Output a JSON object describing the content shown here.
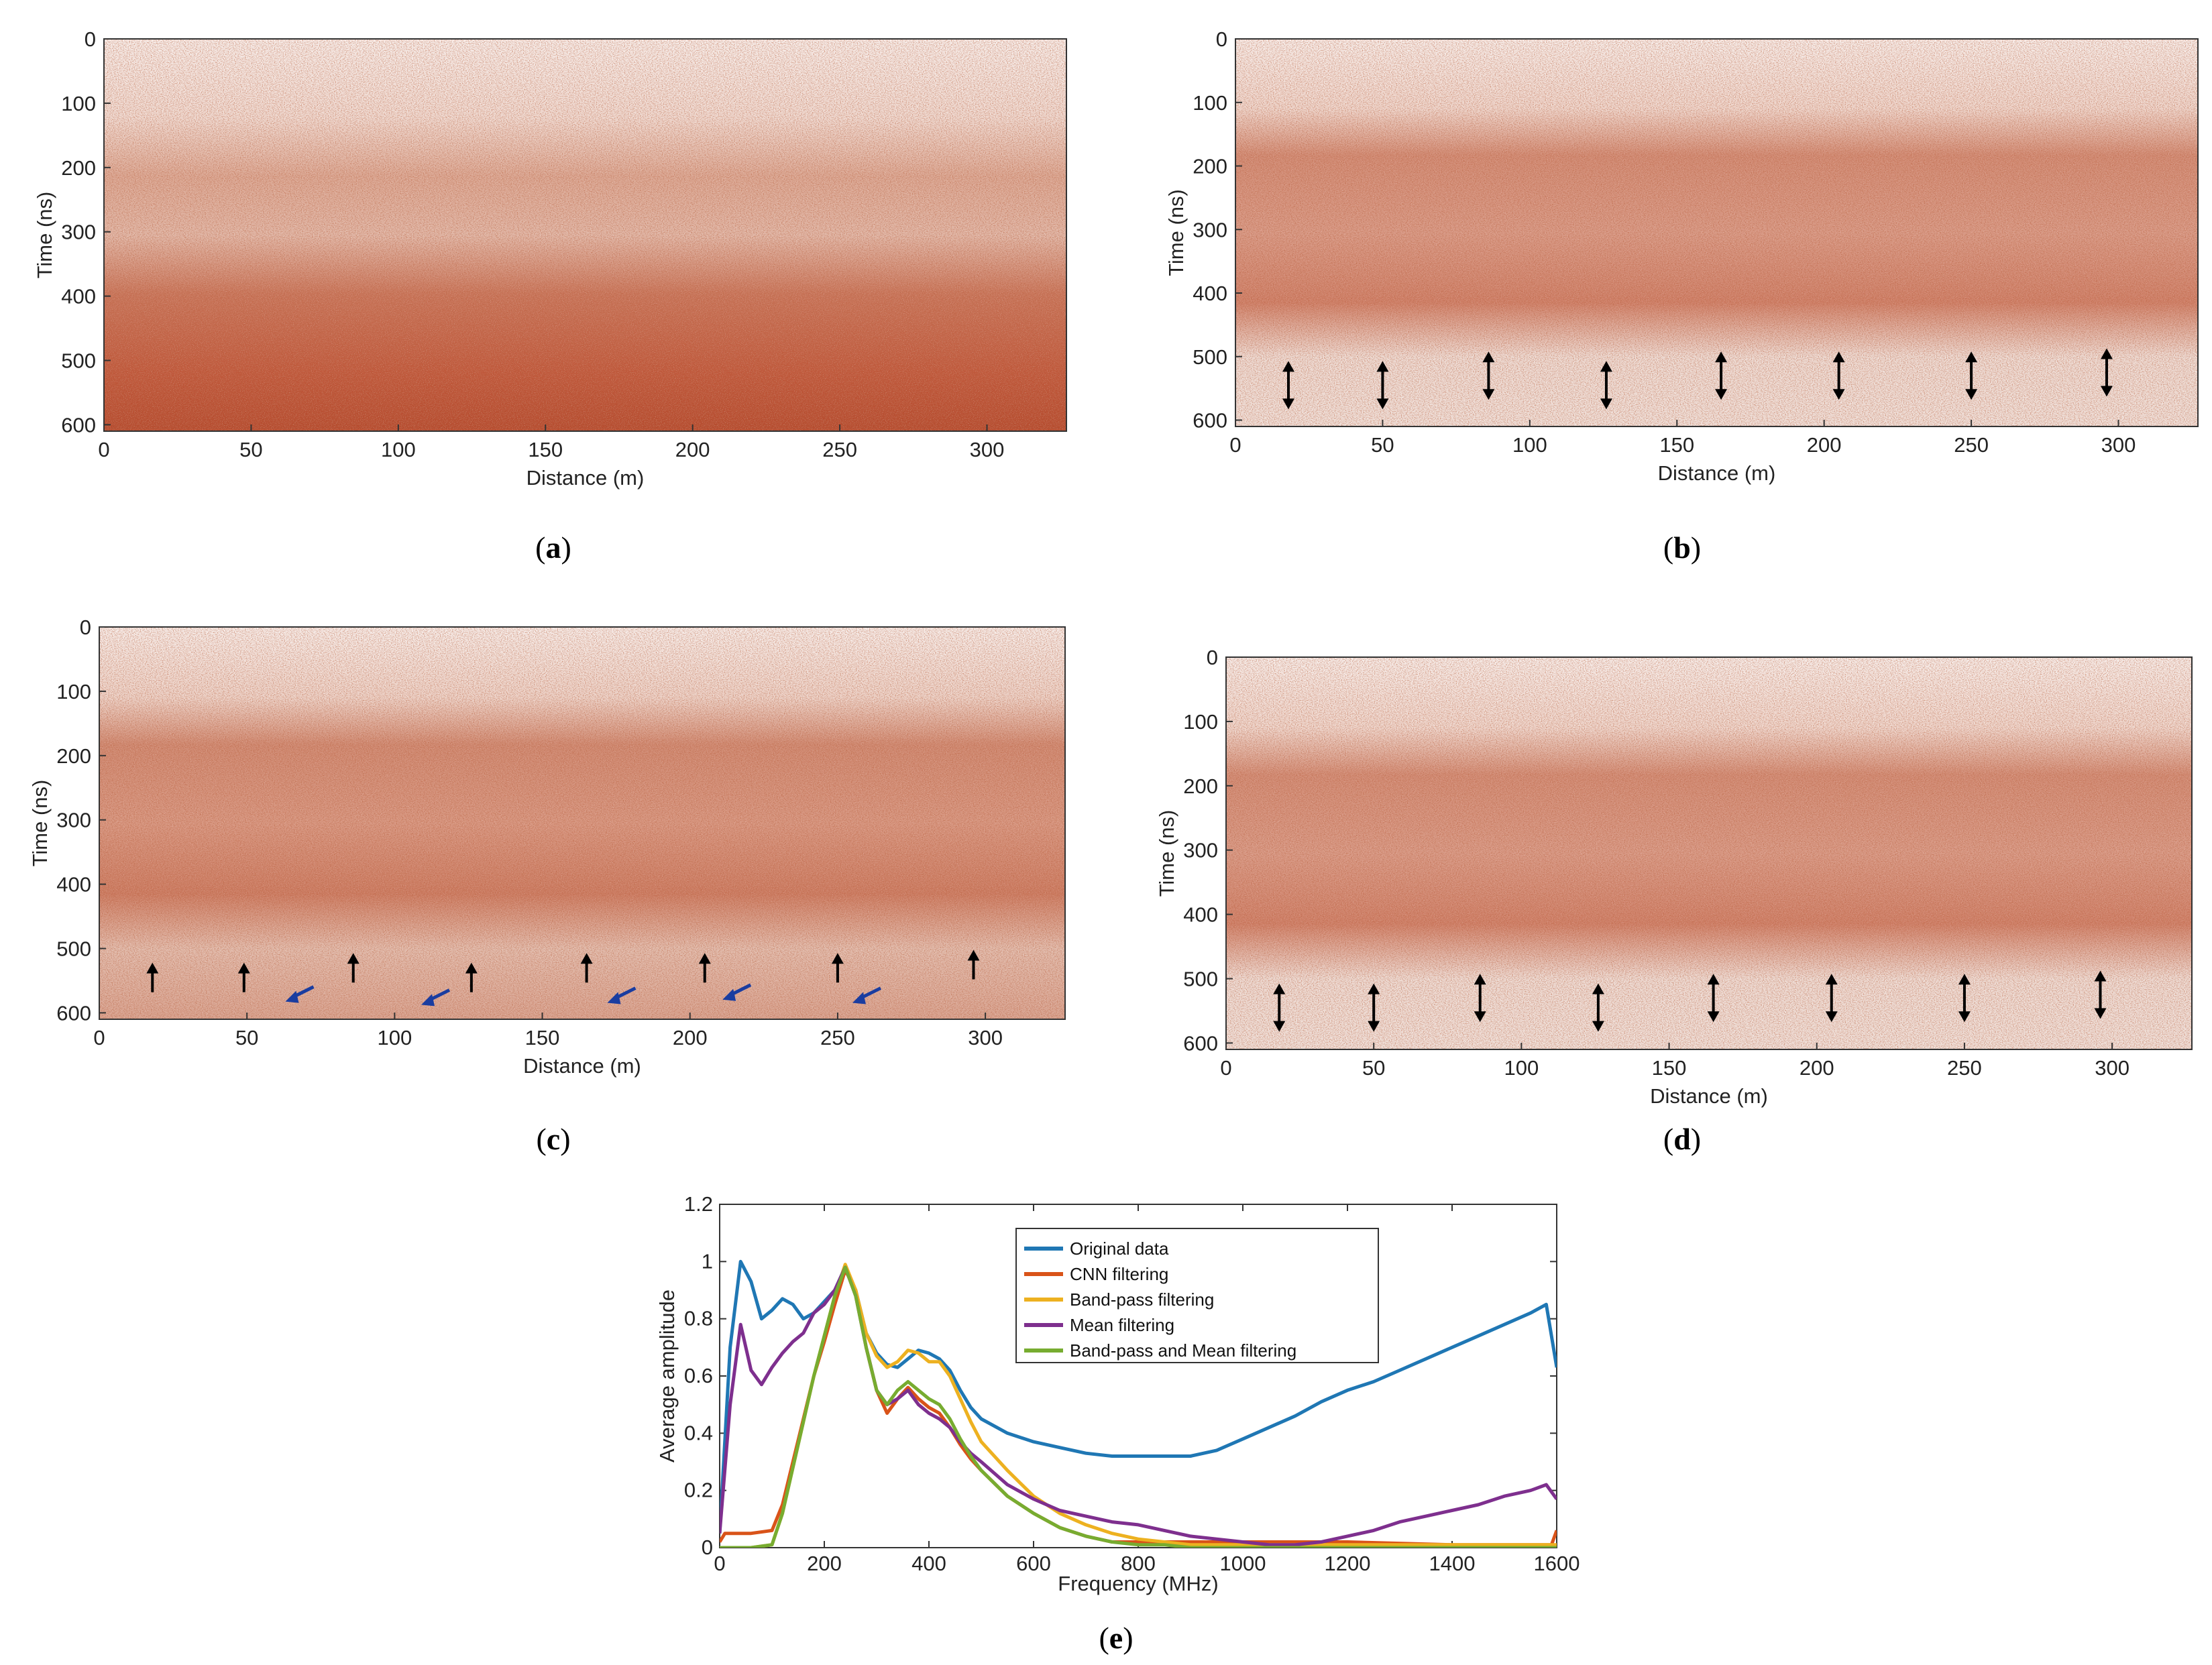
{
  "panels": [
    {
      "id": "a",
      "caption": "a",
      "type": "heatmap",
      "xlabel": "Distance (m)",
      "ylabel": "Time (ns)",
      "xlim": [
        0,
        327
      ],
      "ylim": [
        0,
        610
      ],
      "xticks": [
        "0",
        "50",
        "100",
        "150",
        "200",
        "250",
        "300"
      ],
      "yticks": [
        "0",
        "100",
        "200",
        "300",
        "400",
        "500",
        "600"
      ],
      "arrows": []
    },
    {
      "id": "b",
      "caption": "b",
      "type": "heatmap",
      "xlabel": "Distance (m)",
      "ylabel": "Time (ns)",
      "xlim": [
        0,
        327
      ],
      "ylim": [
        0,
        610
      ],
      "xticks": [
        "0",
        "50",
        "100",
        "150",
        "200",
        "250",
        "300"
      ],
      "yticks": [
        "0",
        "100",
        "200",
        "300",
        "400",
        "500",
        "600"
      ],
      "arrows": [
        {
          "kind": "double",
          "x": 18,
          "t": 545
        },
        {
          "kind": "double",
          "x": 50,
          "t": 545
        },
        {
          "kind": "double",
          "x": 86,
          "t": 530
        },
        {
          "kind": "double",
          "x": 126,
          "t": 545
        },
        {
          "kind": "double",
          "x": 165,
          "t": 530
        },
        {
          "kind": "double",
          "x": 205,
          "t": 530
        },
        {
          "kind": "double",
          "x": 250,
          "t": 530
        },
        {
          "kind": "double",
          "x": 296,
          "t": 525
        }
      ]
    },
    {
      "id": "c",
      "caption": "c",
      "type": "heatmap",
      "xlabel": "Distance (m)",
      "ylabel": "Time (ns)",
      "xlim": [
        0,
        327
      ],
      "ylim": [
        0,
        610
      ],
      "xticks": [
        "0",
        "50",
        "100",
        "150",
        "200",
        "250",
        "300"
      ],
      "yticks": [
        "0",
        "100",
        "200",
        "300",
        "400",
        "500",
        "600"
      ],
      "arrows": [
        {
          "kind": "up",
          "x": 18,
          "t": 545
        },
        {
          "kind": "up",
          "x": 49,
          "t": 545
        },
        {
          "kind": "up",
          "x": 86,
          "t": 530
        },
        {
          "kind": "up",
          "x": 126,
          "t": 545
        },
        {
          "kind": "up",
          "x": 165,
          "t": 530
        },
        {
          "kind": "up",
          "x": 205,
          "t": 530
        },
        {
          "kind": "up",
          "x": 250,
          "t": 530
        },
        {
          "kind": "up",
          "x": 296,
          "t": 525
        },
        {
          "kind": "diag",
          "x": 68,
          "t": 570
        },
        {
          "kind": "diag",
          "x": 114,
          "t": 575
        },
        {
          "kind": "diag",
          "x": 177,
          "t": 572
        },
        {
          "kind": "diag",
          "x": 216,
          "t": 567
        },
        {
          "kind": "diag",
          "x": 260,
          "t": 572
        }
      ]
    },
    {
      "id": "d",
      "caption": "d",
      "type": "heatmap",
      "xlabel": "Distance (m)",
      "ylabel": "Time (ns)",
      "xlim": [
        0,
        327
      ],
      "ylim": [
        0,
        610
      ],
      "xticks": [
        "0",
        "50",
        "100",
        "150",
        "200",
        "250",
        "300"
      ],
      "yticks": [
        "0",
        "100",
        "200",
        "300",
        "400",
        "500",
        "600"
      ],
      "arrows": [
        {
          "kind": "double",
          "x": 18,
          "t": 545
        },
        {
          "kind": "double",
          "x": 50,
          "t": 545
        },
        {
          "kind": "double",
          "x": 86,
          "t": 530
        },
        {
          "kind": "double",
          "x": 126,
          "t": 545
        },
        {
          "kind": "double",
          "x": 165,
          "t": 530
        },
        {
          "kind": "double",
          "x": 205,
          "t": 530
        },
        {
          "kind": "double",
          "x": 250,
          "t": 530
        },
        {
          "kind": "double",
          "x": 296,
          "t": 525
        }
      ]
    }
  ],
  "chart_data": {
    "type": "line",
    "caption": "e",
    "xlabel": "Frequency (MHz)",
    "ylabel": "Average amplitude",
    "xlim": [
      0,
      1600
    ],
    "ylim": [
      0,
      1.2
    ],
    "xticks": [
      "0",
      "200",
      "400",
      "600",
      "800",
      "1000",
      "1200",
      "1400",
      "1600"
    ],
    "yticks": [
      "0",
      "0.2",
      "0.4",
      "0.6",
      "0.8",
      "1",
      "1.2"
    ],
    "legend_position": "top-right",
    "series": [
      {
        "name": "Original data",
        "color": "#1f77b4",
        "x": [
          0,
          20,
          40,
          60,
          80,
          100,
          120,
          140,
          160,
          180,
          200,
          220,
          240,
          260,
          280,
          300,
          320,
          340,
          360,
          380,
          400,
          420,
          440,
          460,
          480,
          500,
          550,
          600,
          650,
          700,
          750,
          800,
          850,
          900,
          950,
          1000,
          1050,
          1100,
          1150,
          1200,
          1250,
          1300,
          1350,
          1400,
          1450,
          1500,
          1550,
          1580,
          1600
        ],
        "y": [
          0.05,
          0.7,
          1.0,
          0.93,
          0.8,
          0.83,
          0.87,
          0.85,
          0.8,
          0.82,
          0.86,
          0.9,
          0.98,
          0.9,
          0.75,
          0.68,
          0.64,
          0.63,
          0.66,
          0.69,
          0.68,
          0.66,
          0.62,
          0.55,
          0.49,
          0.45,
          0.4,
          0.37,
          0.35,
          0.33,
          0.32,
          0.32,
          0.32,
          0.32,
          0.34,
          0.38,
          0.42,
          0.46,
          0.51,
          0.55,
          0.58,
          0.62,
          0.66,
          0.7,
          0.74,
          0.78,
          0.82,
          0.85,
          0.63
        ]
      },
      {
        "name": "CNN filtering",
        "color": "#d95319",
        "x": [
          0,
          10,
          20,
          60,
          100,
          120,
          140,
          160,
          180,
          200,
          220,
          240,
          260,
          280,
          300,
          320,
          340,
          360,
          380,
          400,
          420,
          440,
          460,
          480,
          500,
          550,
          600,
          650,
          700,
          750,
          800,
          850,
          900,
          1000,
          1200,
          1400,
          1590,
          1600
        ],
        "y": [
          0.02,
          0.05,
          0.05,
          0.05,
          0.06,
          0.15,
          0.3,
          0.45,
          0.6,
          0.72,
          0.85,
          0.97,
          0.9,
          0.7,
          0.55,
          0.47,
          0.52,
          0.56,
          0.52,
          0.49,
          0.47,
          0.42,
          0.36,
          0.31,
          0.27,
          0.18,
          0.12,
          0.07,
          0.04,
          0.02,
          0.02,
          0.02,
          0.02,
          0.02,
          0.02,
          0.01,
          0.01,
          0.06
        ]
      },
      {
        "name": "Band-pass filtering",
        "color": "#edb120",
        "x": [
          0,
          60,
          100,
          120,
          140,
          160,
          180,
          200,
          220,
          240,
          260,
          280,
          300,
          320,
          340,
          360,
          380,
          400,
          420,
          440,
          460,
          480,
          500,
          550,
          600,
          650,
          700,
          750,
          800,
          850,
          900,
          1000,
          1200,
          1400,
          1600
        ],
        "y": [
          0.0,
          0.0,
          0.01,
          0.12,
          0.28,
          0.44,
          0.6,
          0.74,
          0.88,
          0.99,
          0.9,
          0.75,
          0.67,
          0.63,
          0.65,
          0.69,
          0.68,
          0.65,
          0.65,
          0.6,
          0.52,
          0.44,
          0.37,
          0.27,
          0.18,
          0.12,
          0.08,
          0.05,
          0.03,
          0.02,
          0.01,
          0.01,
          0.01,
          0.01,
          0.01
        ]
      },
      {
        "name": "Mean filtering",
        "color": "#7e2f8e",
        "x": [
          0,
          20,
          40,
          60,
          80,
          100,
          120,
          140,
          160,
          180,
          200,
          220,
          240,
          260,
          280,
          300,
          320,
          340,
          360,
          380,
          400,
          420,
          440,
          460,
          480,
          500,
          550,
          600,
          650,
          700,
          750,
          800,
          850,
          900,
          950,
          1000,
          1050,
          1100,
          1150,
          1200,
          1250,
          1300,
          1350,
          1400,
          1450,
          1500,
          1550,
          1580,
          1600
        ],
        "y": [
          0.05,
          0.5,
          0.78,
          0.62,
          0.57,
          0.63,
          0.68,
          0.72,
          0.75,
          0.82,
          0.85,
          0.9,
          0.98,
          0.88,
          0.7,
          0.55,
          0.5,
          0.52,
          0.55,
          0.5,
          0.47,
          0.45,
          0.42,
          0.37,
          0.33,
          0.3,
          0.22,
          0.17,
          0.13,
          0.11,
          0.09,
          0.08,
          0.06,
          0.04,
          0.03,
          0.02,
          0.01,
          0.01,
          0.02,
          0.04,
          0.06,
          0.09,
          0.11,
          0.13,
          0.15,
          0.18,
          0.2,
          0.22,
          0.17
        ]
      },
      {
        "name": "Band-pass and Mean filtering",
        "color": "#77ac30",
        "x": [
          0,
          60,
          100,
          120,
          140,
          160,
          180,
          200,
          220,
          240,
          260,
          280,
          300,
          320,
          340,
          360,
          380,
          400,
          420,
          440,
          460,
          480,
          500,
          550,
          600,
          650,
          700,
          750,
          800,
          850,
          900,
          1000,
          1200,
          1400,
          1600
        ],
        "y": [
          0.0,
          0.0,
          0.01,
          0.12,
          0.28,
          0.44,
          0.6,
          0.74,
          0.88,
          0.98,
          0.88,
          0.7,
          0.55,
          0.5,
          0.55,
          0.58,
          0.55,
          0.52,
          0.5,
          0.45,
          0.38,
          0.32,
          0.27,
          0.18,
          0.12,
          0.07,
          0.04,
          0.02,
          0.01,
          0.01,
          0.0,
          0.0,
          0.0,
          0.0,
          0.0
        ]
      }
    ]
  }
}
